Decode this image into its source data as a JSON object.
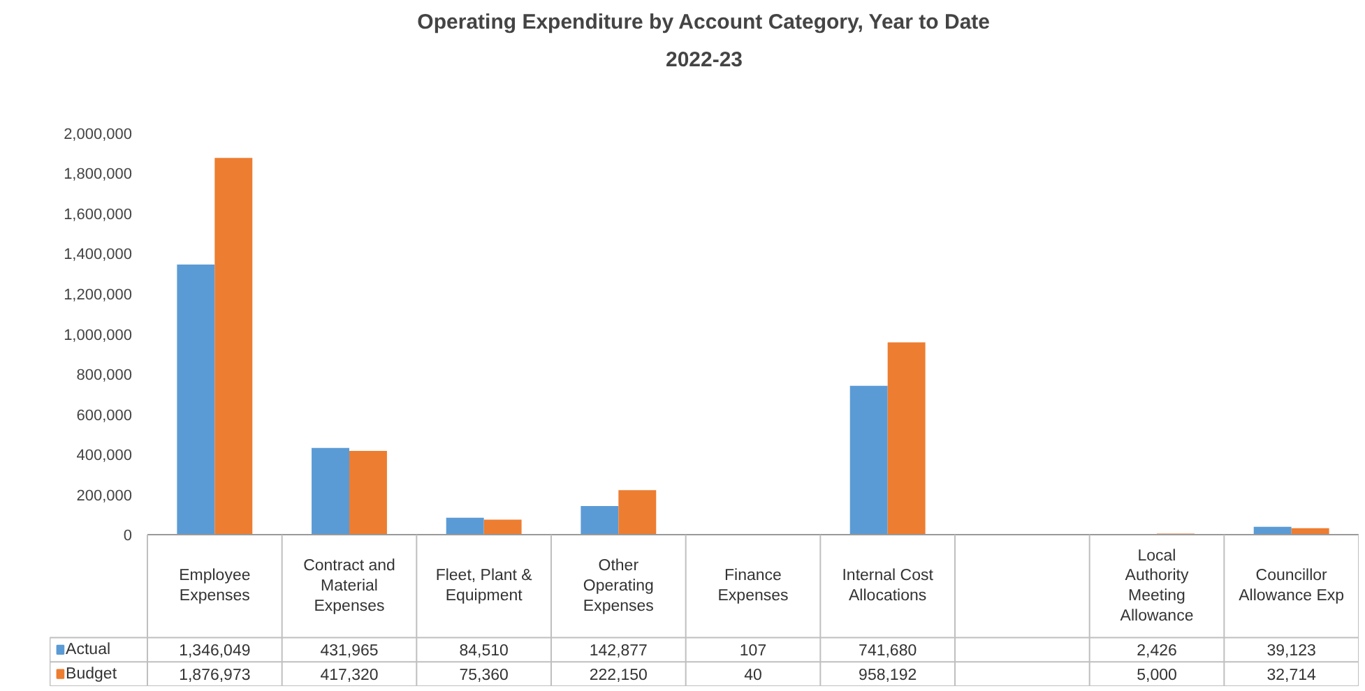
{
  "chart_data": {
    "type": "bar",
    "title": "Operating Expenditure by Account Category, Year to Date",
    "subtitle": "2022-23",
    "categories": [
      "Employee Expenses",
      "Contract and Material Expenses",
      "Fleet, Plant & Equipment",
      "Other Operating Expenses",
      "Finance Expenses",
      "Internal Cost Allocations",
      null,
      "Local Authority Meeting Allowance",
      "Councillor Allowance Exp"
    ],
    "series": [
      {
        "name": "Actual",
        "color": "#5b9bd5",
        "values": [
          1346049,
          431965,
          84510,
          142877,
          107,
          741680,
          null,
          2426,
          39123
        ],
        "value_labels": [
          "1,346,049",
          "431,965",
          "84,510",
          "142,877",
          "107",
          "741,680",
          null,
          "2,426",
          "39,123"
        ]
      },
      {
        "name": "Budget",
        "color": "#ed7d31",
        "values": [
          1876973,
          417320,
          75360,
          222150,
          40,
          958192,
          null,
          5000,
          32714
        ],
        "value_labels": [
          "1,876,973",
          "417,320",
          "75,360",
          "222,150",
          "40",
          "958,192",
          null,
          "5,000",
          "32,714"
        ]
      }
    ],
    "ylim": [
      0,
      2000000
    ],
    "yticks": [
      0,
      {
        "value": 200000,
        "label": "200,000"
      },
      {
        "value": 400000,
        "label": "400,000"
      },
      {
        "value": 600000,
        "label": "600,000"
      },
      {
        "value": 800000,
        "label": "800,000"
      },
      {
        "value": 1000000,
        "label": "1,000,000"
      },
      {
        "value": 1200000,
        "label": "1,200,000"
      },
      {
        "value": 1400000,
        "label": "1,400,000"
      },
      {
        "value": 1600000,
        "label": "1,600,000"
      },
      {
        "value": 1800000,
        "label": "1,800,000"
      },
      {
        "value": 2000000,
        "label": "2,000,000"
      }
    ],
    "grid": false,
    "legend": "bottom"
  }
}
